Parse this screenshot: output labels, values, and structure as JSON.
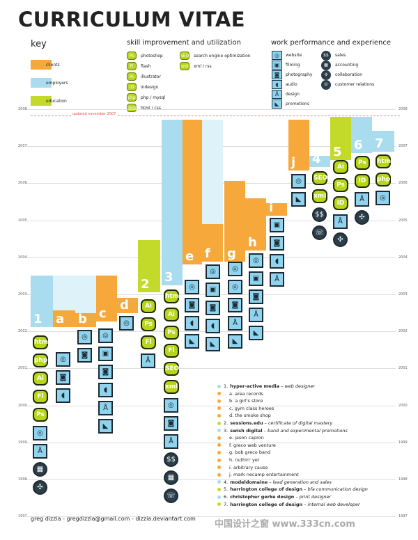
{
  "title": "CURRICULUM VITAE",
  "key": {
    "heading": "key",
    "items": [
      {
        "label": "clients",
        "color": "#f7a83b"
      },
      {
        "label": "employers",
        "color": "#a9dcef"
      },
      {
        "label": "education",
        "color": "#c4da2a"
      }
    ]
  },
  "skills": {
    "heading": "skill improvement and utilization",
    "items": [
      {
        "code": "Ps",
        "label": "photoshop"
      },
      {
        "code": "Fl",
        "label": "flash"
      },
      {
        "code": "Ai",
        "label": "illustrator"
      },
      {
        "code": "ID",
        "label": "indesign"
      },
      {
        "code": "php",
        "label": "php / mysql"
      },
      {
        "code": "html",
        "label": "html / css"
      },
      {
        "code": "SEO",
        "label": "search engine optimization"
      },
      {
        "code": "xml",
        "label": "xml / rss"
      }
    ]
  },
  "work": {
    "heading": "work performance and experience",
    "items": [
      {
        "icon": "website-icon",
        "glyph": "◎",
        "label": "website"
      },
      {
        "icon": "filming-icon",
        "glyph": "▣",
        "label": "filming"
      },
      {
        "icon": "camera-icon",
        "glyph": "◙",
        "label": "photography"
      },
      {
        "icon": "audio-icon",
        "glyph": "◖",
        "label": "audio"
      },
      {
        "icon": "compass-icon",
        "glyph": "Å",
        "label": "design"
      },
      {
        "icon": "megaphone-icon",
        "glyph": "◣",
        "label": "promotions"
      },
      {
        "icon": "sales-icon",
        "glyph": "$$",
        "label": "sales"
      },
      {
        "icon": "accounting-icon",
        "glyph": "▦",
        "label": "accounting"
      },
      {
        "icon": "collaboration-icon",
        "glyph": "✣",
        "label": "collaboration"
      },
      {
        "icon": "customer-relations-icon",
        "glyph": "☏",
        "label": "customer relations"
      }
    ]
  },
  "timeline": {
    "years": [
      "2008",
      "2007",
      "2006",
      "2005",
      "2004",
      "2003",
      "2002",
      "2001",
      "2000",
      "1999",
      "1998",
      "1997"
    ],
    "updated_note": "updated november 2007"
  },
  "columns": [
    {
      "label": "1"
    },
    {
      "label": "a"
    },
    {
      "label": "b"
    },
    {
      "label": "c"
    },
    {
      "label": "d"
    },
    {
      "label": "2"
    },
    {
      "label": "3"
    },
    {
      "label": "e"
    },
    {
      "label": "f"
    },
    {
      "label": "g"
    },
    {
      "label": "h"
    },
    {
      "label": "i"
    },
    {
      "label": "j"
    },
    {
      "label": "4"
    },
    {
      "label": "5"
    },
    {
      "label": "6"
    },
    {
      "label": "7"
    }
  ],
  "legend": [
    {
      "bullet": "1.",
      "strong": "hyper-active media",
      "rest": " – web designer",
      "type": "employer"
    },
    {
      "bullet": "",
      "strong": "",
      "rest": "a. area records",
      "type": "client"
    },
    {
      "bullet": "",
      "strong": "",
      "rest": "b. a girl's store",
      "type": "client"
    },
    {
      "bullet": "",
      "strong": "",
      "rest": "c. gym class heroes",
      "type": "client"
    },
    {
      "bullet": "",
      "strong": "",
      "rest": "d. the smoke shop",
      "type": "client"
    },
    {
      "bullet": "2.",
      "strong": "sessions.edu",
      "rest": " – certificate of digital mastery",
      "type": "education"
    },
    {
      "bullet": "3.",
      "strong": "swish digital",
      "rest": " – band and experimental promotions",
      "type": "employer"
    },
    {
      "bullet": "",
      "strong": "",
      "rest": "e. jason capron",
      "type": "client"
    },
    {
      "bullet": "",
      "strong": "",
      "rest": "f.  greco web venture",
      "type": "client"
    },
    {
      "bullet": "",
      "strong": "",
      "rest": "g. bob greco band",
      "type": "client"
    },
    {
      "bullet": "",
      "strong": "",
      "rest": "h. nuthin' yet",
      "type": "client"
    },
    {
      "bullet": "",
      "strong": "",
      "rest": "i.  arbitrary cause",
      "type": "client"
    },
    {
      "bullet": "",
      "strong": "",
      "rest": "j.  mark necamp entertainment",
      "type": "client"
    },
    {
      "bullet": "4.",
      "strong": "modeldomaine",
      "rest": " – lead generation and sales",
      "type": "employer"
    },
    {
      "bullet": "5.",
      "strong": "harrington college of design",
      "rest": " – bfa communication design",
      "type": "education"
    },
    {
      "bullet": "6.",
      "strong": "christopher gerke design",
      "rest": " – print designer",
      "type": "employer"
    },
    {
      "bullet": "7.",
      "strong": "harrington college of design",
      "rest": " – internal web developer",
      "type": "education"
    }
  ],
  "footer": "greg dizzia - gregdizzia@gmail.com - dizzia.deviantart.com",
  "watermark": "中国设计之窗 www.333cn.com",
  "colors": {
    "clients": "#f7a83b",
    "employers": "#a9dcef",
    "education": "#c4da2a",
    "light": "#def2fa"
  }
}
